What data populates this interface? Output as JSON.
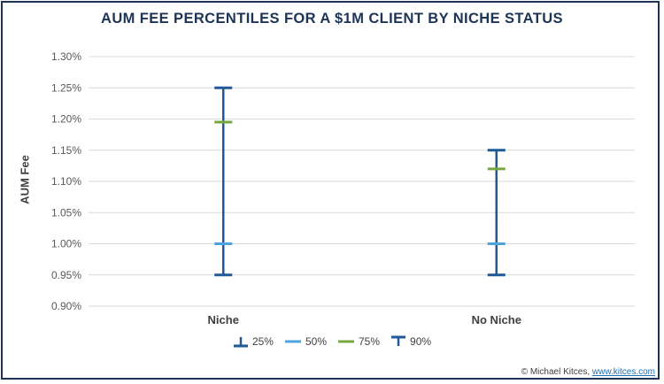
{
  "title": "AUM FEE PERCENTILES FOR A $1M CLIENT BY NICHE STATUS",
  "footer": {
    "credit": "© Michael Kitces, ",
    "link": "www.kitces.com"
  },
  "colors": {
    "p25": "#1f5a96",
    "p50": "#4da3df",
    "p75": "#77a840",
    "p90": "#1f5a96",
    "whisker": "#1f5a96"
  },
  "chart_data": {
    "type": "scatter",
    "title": "AUM FEE PERCENTILES FOR A $1M CLIENT BY NICHE STATUS",
    "xlabel": "",
    "ylabel": "AUM Fee",
    "categories": [
      "Niche",
      "No Niche"
    ],
    "ylim": [
      0.9,
      1.3
    ],
    "yticks": [
      "0.90%",
      "0.95%",
      "1.00%",
      "1.05%",
      "1.10%",
      "1.15%",
      "1.20%",
      "1.25%",
      "1.30%"
    ],
    "ytick_values": [
      0.9,
      0.95,
      1.0,
      1.05,
      1.1,
      1.15,
      1.2,
      1.25,
      1.3
    ],
    "grid": true,
    "legend_position": "bottom",
    "series": [
      {
        "name": "25%",
        "values": [
          0.95,
          0.95
        ]
      },
      {
        "name": "50%",
        "values": [
          1.0,
          1.0
        ]
      },
      {
        "name": "75%",
        "values": [
          1.195,
          1.12
        ]
      },
      {
        "name": "90%",
        "values": [
          1.25,
          1.15
        ]
      }
    ]
  }
}
